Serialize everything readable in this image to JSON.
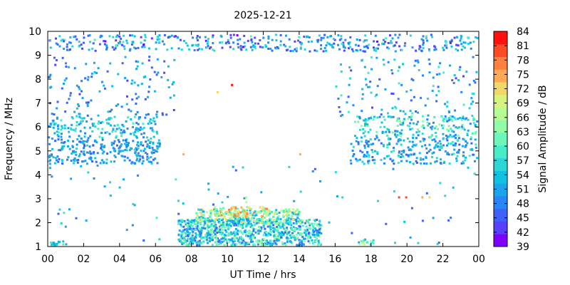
{
  "chart_data": {
    "type": "heatmap",
    "title": "2025-12-21",
    "xlabel": "UT Time / hrs",
    "ylabel": "Frequency / MHz",
    "colorbar_label": "Signal Amplitude / dB",
    "x_ticks": [
      "00",
      "02",
      "04",
      "06",
      "08",
      "10",
      "12",
      "14",
      "16",
      "18",
      "20",
      "22",
      "00"
    ],
    "xlim": [
      0,
      24
    ],
    "y_ticks": [
      "1",
      "2",
      "3",
      "4",
      "5",
      "6",
      "7",
      "8",
      "9",
      "10"
    ],
    "ylim": [
      1,
      10
    ],
    "colorbar_ticks": [
      "84",
      "81",
      "78",
      "75",
      "72",
      "69",
      "66",
      "63",
      "60",
      "57",
      "54",
      "51",
      "48",
      "45",
      "42",
      "39"
    ],
    "zlim": [
      37.5,
      85.5
    ],
    "colormap": [
      "#7f00ff",
      "#5a3ffd",
      "#3f61fa",
      "#2887f4",
      "#1ba4ec",
      "#10c2e1",
      "#2ad7d5",
      "#48ecc8",
      "#6cf6b9",
      "#90fca7",
      "#b6fc94",
      "#d8f27e",
      "#f0d868",
      "#ffa955",
      "#ff7f3f",
      "#ff4a26",
      "#ff1010"
    ],
    "notes": "Sparse scatter of frequency/time cells; dense clusters near 4.5-6.5 MHz (00-06 and 17-24 UT), 9.3-9.9 MHz band, and strong daytime patch 1-3 MHz around 07-15 UT."
  }
}
